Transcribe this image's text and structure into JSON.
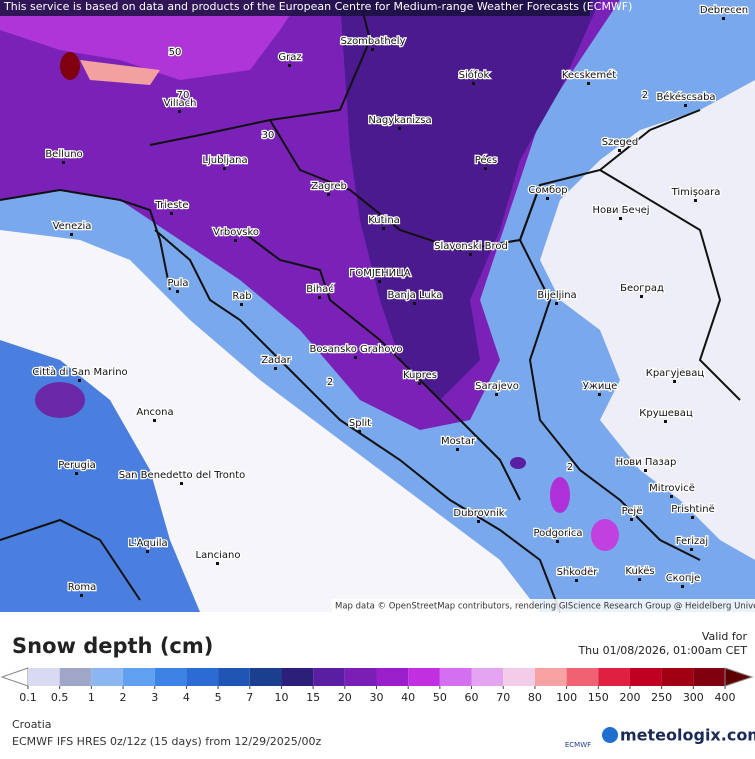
{
  "notice": "This service is based on data and products of the European Centre for Medium-range Weather Forecasts (ECMWF)",
  "attribution": "Map data © OpenStreetMap contributors, rendering GIScience Research Group @ Heidelberg University",
  "cities": [
    "Debrecen",
    "Graz",
    "Szombathely",
    "Siófok",
    "Kecskemét",
    "Békéscsaba",
    "Nagykanizsa",
    "Villach",
    "Belluno",
    "Ljubljana",
    "Szeged",
    "Pécs",
    "Zagreb",
    "Venezia",
    "Trieste",
    "Сомбор",
    "Timișoara",
    "Нови Бечеј",
    "Vrbovsko",
    "Kutina",
    "Slavonski Brod",
    "ГОМЈЕНИЦА",
    "Banja Luka",
    "Pula",
    "Rab",
    "Bihać",
    "Bijeljina",
    "Београд",
    "Bosansko Grahovo",
    "Zadar",
    "Città di San Marino",
    "Kupres",
    "Sarajevo",
    "Крагујевац",
    "Ужице",
    "Ancona",
    "Крушевац",
    "Split",
    "Mostar",
    "Нови Пазар",
    "Perugia",
    "San Benedetto del Tronto",
    "Mitrovicë",
    "Dubrovnik",
    "Pejë",
    "Prishtinë",
    "Podgorica",
    "L'Aquila",
    "Lanciano",
    "Ferizaj",
    "Shkodër",
    "Kukës",
    "Скопје",
    "Roma"
  ],
  "contour_labels": [
    50,
    70,
    30,
    2,
    2,
    2
  ],
  "legend": {
    "title": "Snow depth (cm)",
    "valid_label": "Valid for",
    "valid_time": "Thu 01/08/2026, 01:00am CET",
    "levels": [
      0.1,
      0.5,
      1,
      2,
      3,
      4,
      5,
      7,
      10,
      15,
      20,
      30,
      40,
      50,
      60,
      70,
      80,
      100,
      150,
      200,
      250,
      300,
      400
    ],
    "colors": [
      "#ffffff",
      "#d9d9f2",
      "#a0a6c8",
      "#8cb6f2",
      "#5fa0f0",
      "#3d83e6",
      "#2b6bd2",
      "#1f56b4",
      "#1a3f8f",
      "#2b1f7a",
      "#5a1ea2",
      "#7a1eb6",
      "#9a1ec9",
      "#c030e0",
      "#d470f0",
      "#e4a4f2",
      "#f2cce8",
      "#f8a3a3",
      "#f06272",
      "#e02040",
      "#c00020",
      "#a00012",
      "#800010",
      "#5e0000"
    ]
  },
  "footer": {
    "region": "Croatia",
    "model": "ECMWF IFS HRES 0z/12z (15 days) from 12/29/2025/00z",
    "logo": "ECMWF",
    "brand": "meteologix.com"
  }
}
